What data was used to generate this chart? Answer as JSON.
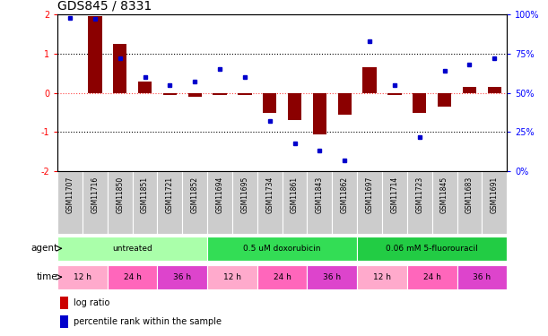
{
  "title": "GDS845 / 8331",
  "samples": [
    "GSM11707",
    "GSM11716",
    "GSM11850",
    "GSM11851",
    "GSM11721",
    "GSM11852",
    "GSM11694",
    "GSM11695",
    "GSM11734",
    "GSM11861",
    "GSM11843",
    "GSM11862",
    "GSM11697",
    "GSM11714",
    "GSM11723",
    "GSM11845",
    "GSM11683",
    "GSM11691"
  ],
  "log_ratio": [
    0.0,
    1.95,
    1.25,
    0.3,
    -0.05,
    -0.1,
    -0.05,
    -0.05,
    -0.5,
    -0.7,
    -1.05,
    -0.55,
    0.65,
    -0.05,
    -0.5,
    -0.35,
    0.15,
    0.15
  ],
  "percentile": [
    98,
    97,
    72,
    60,
    55,
    57,
    65,
    60,
    32,
    18,
    13,
    7,
    83,
    55,
    22,
    64,
    68,
    72
  ],
  "bar_color": "#8B0000",
  "dot_color": "#0000CC",
  "ylim_left": [
    -2,
    2
  ],
  "ylim_right": [
    0,
    100
  ],
  "yticks_left": [
    -2,
    -1,
    0,
    1,
    2
  ],
  "yticks_right": [
    0,
    25,
    50,
    75,
    100
  ],
  "ytick_right_labels": [
    "0%",
    "25%",
    "50%",
    "75%",
    "100%"
  ],
  "hline_zero_color": "#FF4444",
  "hline_color": "black",
  "agent_groups": [
    {
      "label": "untreated",
      "start": 0,
      "end": 5,
      "color": "#AAFFAA"
    },
    {
      "label": "0.5 uM doxorubicin",
      "start": 6,
      "end": 11,
      "color": "#33DD55"
    },
    {
      "label": "0.06 mM 5-fluorouracil",
      "start": 12,
      "end": 17,
      "color": "#22CC44"
    }
  ],
  "time_groups": [
    {
      "label": "12 h",
      "start": 0,
      "end": 1,
      "color": "#FFAACC"
    },
    {
      "label": "24 h",
      "start": 2,
      "end": 3,
      "color": "#FF66BB"
    },
    {
      "label": "36 h",
      "start": 4,
      "end": 5,
      "color": "#DD44CC"
    },
    {
      "label": "12 h",
      "start": 6,
      "end": 7,
      "color": "#FFAACC"
    },
    {
      "label": "24 h",
      "start": 8,
      "end": 9,
      "color": "#FF66BB"
    },
    {
      "label": "36 h",
      "start": 10,
      "end": 11,
      "color": "#DD44CC"
    },
    {
      "label": "12 h",
      "start": 12,
      "end": 13,
      "color": "#FFAACC"
    },
    {
      "label": "24 h",
      "start": 14,
      "end": 15,
      "color": "#FF66BB"
    },
    {
      "label": "36 h",
      "start": 16,
      "end": 17,
      "color": "#DD44CC"
    }
  ],
  "legend_bar_color": "#CC0000",
  "legend_dot_color": "#0000CC",
  "legend_bar_label": "log ratio",
  "legend_dot_label": "percentile rank within the sample",
  "bg_color": "#FFFFFF",
  "sample_bg_color": "#CCCCCC",
  "agent_label": "agent",
  "time_label": "time",
  "title_fontsize": 10,
  "tick_fontsize": 7,
  "label_fontsize": 8
}
